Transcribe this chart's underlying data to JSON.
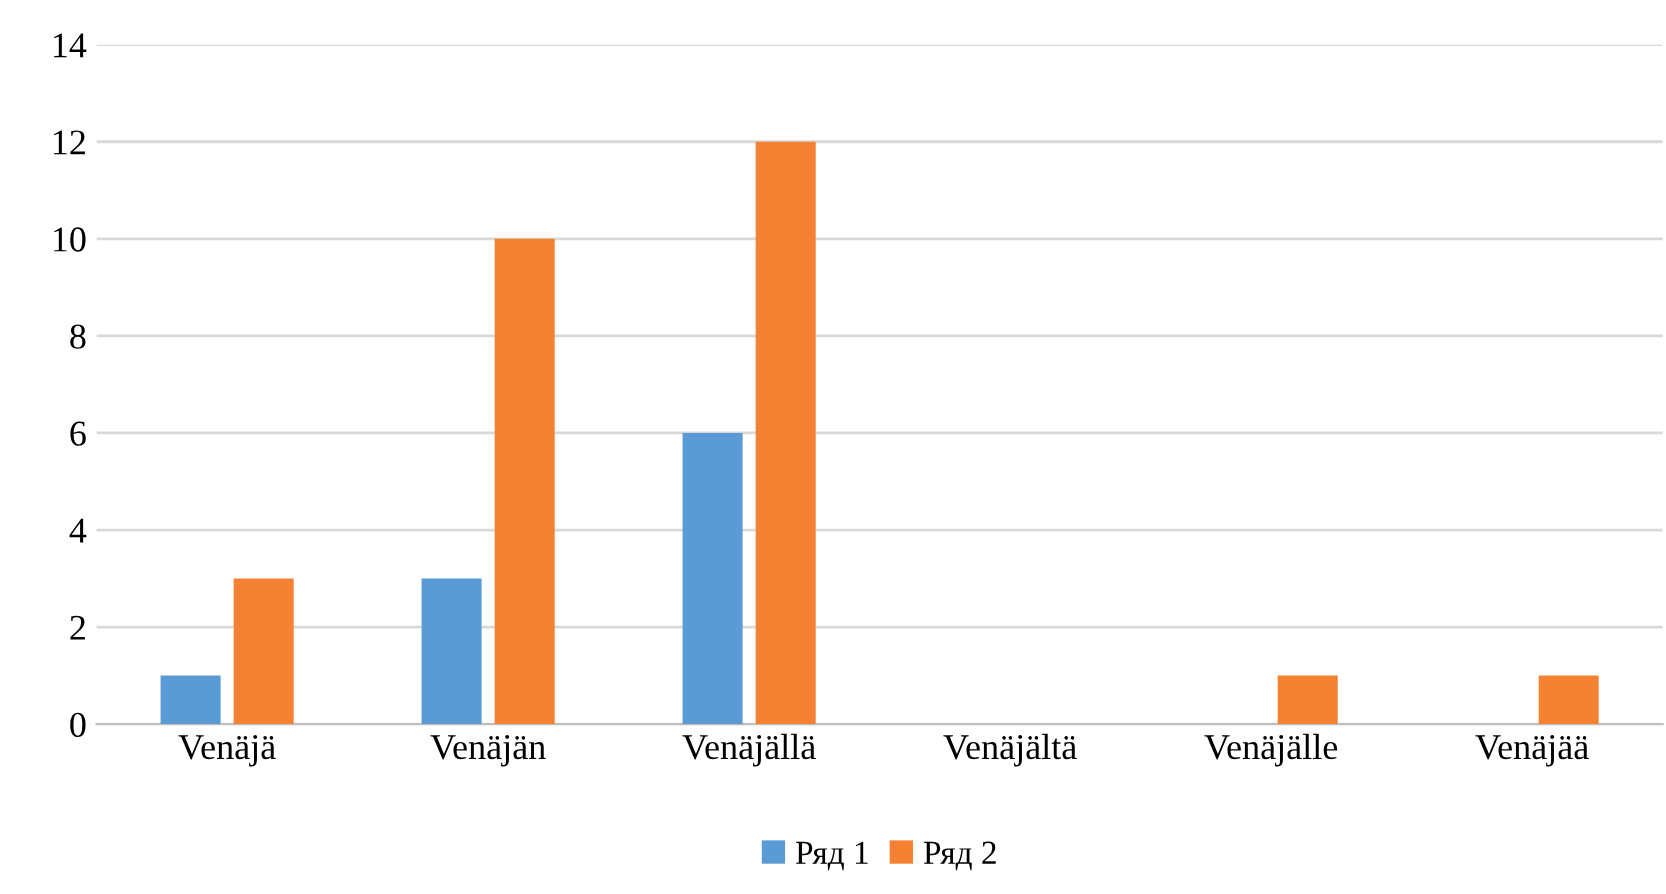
{
  "chart_data": {
    "type": "bar",
    "categories": [
      "Venäjä",
      "Venäjän",
      "Venäjällä",
      "Venäjältä",
      "Venäjälle",
      "Venäjää"
    ],
    "series": [
      {
        "name": "Ряд 1",
        "color": "#5b9bd5",
        "values": [
          1,
          3,
          6,
          0,
          0,
          0
        ]
      },
      {
        "name": "Ряд 2",
        "color": "#f58233",
        "values": [
          3,
          10,
          12,
          0,
          1,
          1
        ]
      }
    ],
    "ylim": [
      0,
      14
    ],
    "yticks": [
      0,
      2,
      4,
      6,
      8,
      10,
      12,
      14
    ],
    "grid": "y",
    "legend": "bottom"
  }
}
